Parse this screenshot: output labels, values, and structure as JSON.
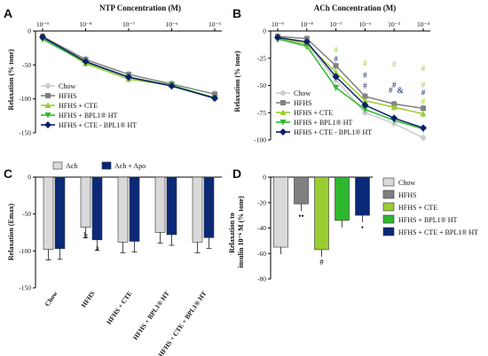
{
  "figure": {
    "colors": {
      "chow": "#cccccc",
      "hfhs": "#808080",
      "cte": "#9acd32",
      "bpl1": "#2eb82e",
      "cte_bpl1": "#0a1f6b",
      "ach_light": "#d9d9d9",
      "apo_dark": "#0a2a78"
    }
  },
  "chart_data": [
    {
      "panel": "A",
      "type": "line",
      "title": "NTP Concentration (M)",
      "xlabel": "NTP Concentration (M)",
      "ylabel": "Relaxation (% tone)",
      "x_scale": "log",
      "x_tick_labels": [
        "10⁻⁹",
        "10⁻⁸",
        "10⁻⁷",
        "10⁻⁶",
        "10⁻⁵"
      ],
      "x": [
        1e-09,
        1e-08,
        1e-07,
        1e-06,
        1e-05
      ],
      "ylim": [
        -150,
        0
      ],
      "y_ticks": [
        0,
        -50,
        -100,
        -150
      ],
      "legend_position": "bottom-left",
      "series": [
        {
          "name": "Chow",
          "color": "#cccccc",
          "marker": "circle",
          "values": [
            -10,
            -45,
            -70,
            -80,
            -100
          ]
        },
        {
          "name": "HFHS",
          "color": "#808080",
          "marker": "square",
          "values": [
            -8,
            -42,
            -64,
            -78,
            -93
          ]
        },
        {
          "name": "HFHS + CTE",
          "color": "#9acd32",
          "marker": "triangle",
          "values": [
            -9,
            -48,
            -71,
            -80,
            -98
          ]
        },
        {
          "name": "HFHS + BPL1® HT",
          "color": "#2eb82e",
          "marker": "triangle-down",
          "values": [
            -12,
            -46,
            -68,
            -80,
            -99
          ]
        },
        {
          "name": "HFHS + CTE - BPL1® HT",
          "color": "#0a1f6b",
          "marker": "diamond",
          "values": [
            -9,
            -45,
            -68,
            -81,
            -99
          ]
        }
      ]
    },
    {
      "panel": "B",
      "type": "line",
      "title": "ACh Concentration (M)",
      "xlabel": "ACh Concentration (M)",
      "ylabel": "Relaxation (% tone)",
      "x_scale": "log",
      "x_tick_labels": [
        "10⁻⁹",
        "10⁻⁸",
        "10⁻⁷",
        "10⁻⁶",
        "10⁻⁵",
        "10⁻⁴"
      ],
      "x": [
        1e-09,
        1e-08,
        1e-07,
        1e-06,
        1e-05,
        0.0001
      ],
      "ylim": [
        -100,
        0
      ],
      "y_ticks": [
        0,
        -25,
        -50,
        -75,
        -100
      ],
      "legend_position": "bottom-left",
      "series": [
        {
          "name": "Chow",
          "color": "#cccccc",
          "marker": "circle",
          "values": [
            -8,
            -12,
            -45,
            -75,
            -85,
            -98
          ]
        },
        {
          "name": "HFHS",
          "color": "#808080",
          "marker": "square",
          "values": [
            -5,
            -7,
            -32,
            -60,
            -67,
            -71
          ]
        },
        {
          "name": "HFHS + CTE",
          "color": "#9acd32",
          "marker": "triangle",
          "values": [
            -6,
            -12,
            -38,
            -64,
            -70,
            -76
          ]
        },
        {
          "name": "HFHS + BPL1® HT",
          "color": "#2eb82e",
          "marker": "triangle-down",
          "values": [
            -7,
            -14,
            -52,
            -72,
            -82,
            -90
          ]
        },
        {
          "name": "HFHS + CTE - BPL1® HT",
          "color": "#0a1f6b",
          "marker": "diamond",
          "values": [
            -6,
            -10,
            -42,
            -68,
            -80,
            -89
          ]
        }
      ],
      "annotations": [
        "#",
        "#",
        "#",
        "#",
        "#",
        "#",
        "#",
        "#",
        "#",
        "&",
        "#",
        "#",
        "#",
        "#"
      ]
    },
    {
      "panel": "C",
      "type": "bar",
      "ylabel": "Relaxation (Emax)",
      "categories": [
        "Chow",
        "HFHS",
        "HFHS + CTE",
        "HFHS + BPL1® HT",
        "HFHS + CTE + BPL1® HT"
      ],
      "ylim": [
        -150,
        0
      ],
      "y_ticks": [
        0,
        -50,
        -100,
        -150
      ],
      "legend_position": "top",
      "series": [
        {
          "name": "Ach",
          "color": "#d9d9d9",
          "values": [
            -98,
            -68,
            -88,
            -75,
            -88
          ]
        },
        {
          "name": "Ach + Apo",
          "color": "#0a2a78",
          "values": [
            -97,
            -85,
            -87,
            -78,
            -82
          ]
        }
      ],
      "annotations": [
        {
          "category": "HFHS",
          "series": "Ach",
          "label": "b"
        },
        {
          "category": "HFHS",
          "series": "Ach + Apo",
          "label": "a"
        }
      ]
    },
    {
      "panel": "D",
      "type": "bar",
      "ylabel": "Relaxation to insulin 10⁻⁶ M (% tone)",
      "categories": [
        "Chow",
        "HFHS",
        "HFHS + CTE",
        "HFHS + BPL1® HT",
        "HFHS + CTE + BPL1® HT"
      ],
      "values": [
        -55,
        -21,
        -57,
        -34,
        -30
      ],
      "colors": [
        "#d9d9d9",
        "#808080",
        "#9acd32",
        "#2eb82e",
        "#0a2a78"
      ],
      "ylim": [
        -80,
        0
      ],
      "y_ticks": [
        0,
        -20,
        -40,
        -60,
        -80
      ],
      "legend_position": "right",
      "annotations": [
        {
          "category": "HFHS",
          "label": "••"
        },
        {
          "category": "HFHS + CTE",
          "label": "#"
        },
        {
          "category": "HFHS + CTE + BPL1® HT",
          "label": "•"
        }
      ]
    }
  ]
}
